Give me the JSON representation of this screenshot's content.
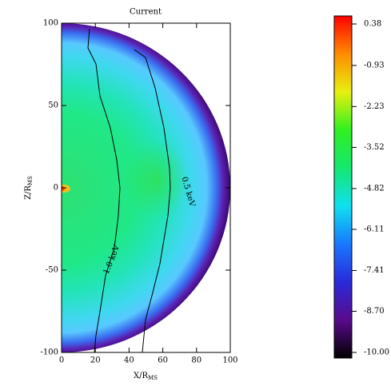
{
  "chart_data": {
    "type": "heatmap",
    "title": "Current",
    "xlabel": "X/R",
    "xlabel_sub": "MS",
    "ylabel": "Z/R",
    "ylabel_sub": "MS",
    "xlim": [
      0,
      100
    ],
    "ylim": [
      -100,
      100
    ],
    "xticks": [
      0,
      20,
      40,
      60,
      80,
      100
    ],
    "yticks": [
      -100,
      -50,
      0,
      50,
      100
    ],
    "annotations": [
      "1.0 keV",
      "0.5 keV"
    ],
    "colorbar": {
      "clim": [
        -10,
        0.38
      ],
      "ticks": [
        0.38,
        -0.93,
        -2.23,
        -3.52,
        -4.82,
        -6.11,
        -7.41,
        {
          "value": -8.7,
          "label": "-8.70"
        },
        {
          "value": -10,
          "label": "-10.00"
        }
      ],
      "colormap": [
        "#000000",
        "#5a0a8c",
        "#2a2ad8",
        "#1878ff",
        "#10e0f0",
        "#14e870",
        "#30f020",
        "#e8f010",
        "#ff8c00",
        "#ff0000"
      ]
    }
  }
}
